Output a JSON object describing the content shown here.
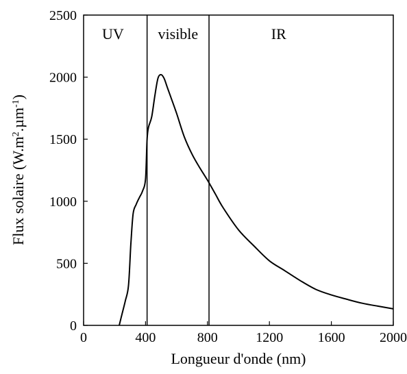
{
  "chart_data": {
    "type": "line",
    "title": "",
    "xlabel": "Longueur d'onde (nm)",
    "ylabel_parts": {
      "main": "Flux solaire (W.m",
      "sup1": "2",
      "mid": ".µm",
      "sup2": "-1",
      "end": ")"
    },
    "xlim": [
      0,
      2000
    ],
    "ylim": [
      0,
      2500
    ],
    "xticks": [
      0,
      400,
      800,
      1200,
      1600,
      2000
    ],
    "yticks": [
      0,
      500,
      1000,
      1500,
      2000,
      2500
    ],
    "grid": false,
    "vlines": [
      410,
      810
    ],
    "regions": [
      {
        "label": "UV",
        "x": 190
      },
      {
        "label": "visible",
        "x": 610
      },
      {
        "label": "IR",
        "x": 1260
      }
    ],
    "series": [
      {
        "x": [
          230,
          250,
          270,
          290,
          305,
          320,
          340,
          360,
          380,
          400,
          410,
          420,
          440,
          460,
          480,
          500,
          520,
          540,
          560,
          600,
          650,
          700,
          750,
          800,
          850,
          900,
          1000,
          1100,
          1200,
          1300,
          1400,
          1500,
          1600,
          1700,
          1800,
          1900,
          2000
        ],
        "y": [
          0,
          100,
          200,
          320,
          650,
          900,
          975,
          1030,
          1080,
          1180,
          1500,
          1600,
          1680,
          1850,
          1990,
          2020,
          1990,
          1920,
          1850,
          1710,
          1520,
          1380,
          1270,
          1170,
          1060,
          950,
          770,
          640,
          520,
          440,
          360,
          290,
          245,
          210,
          178,
          155,
          133
        ]
      }
    ]
  }
}
